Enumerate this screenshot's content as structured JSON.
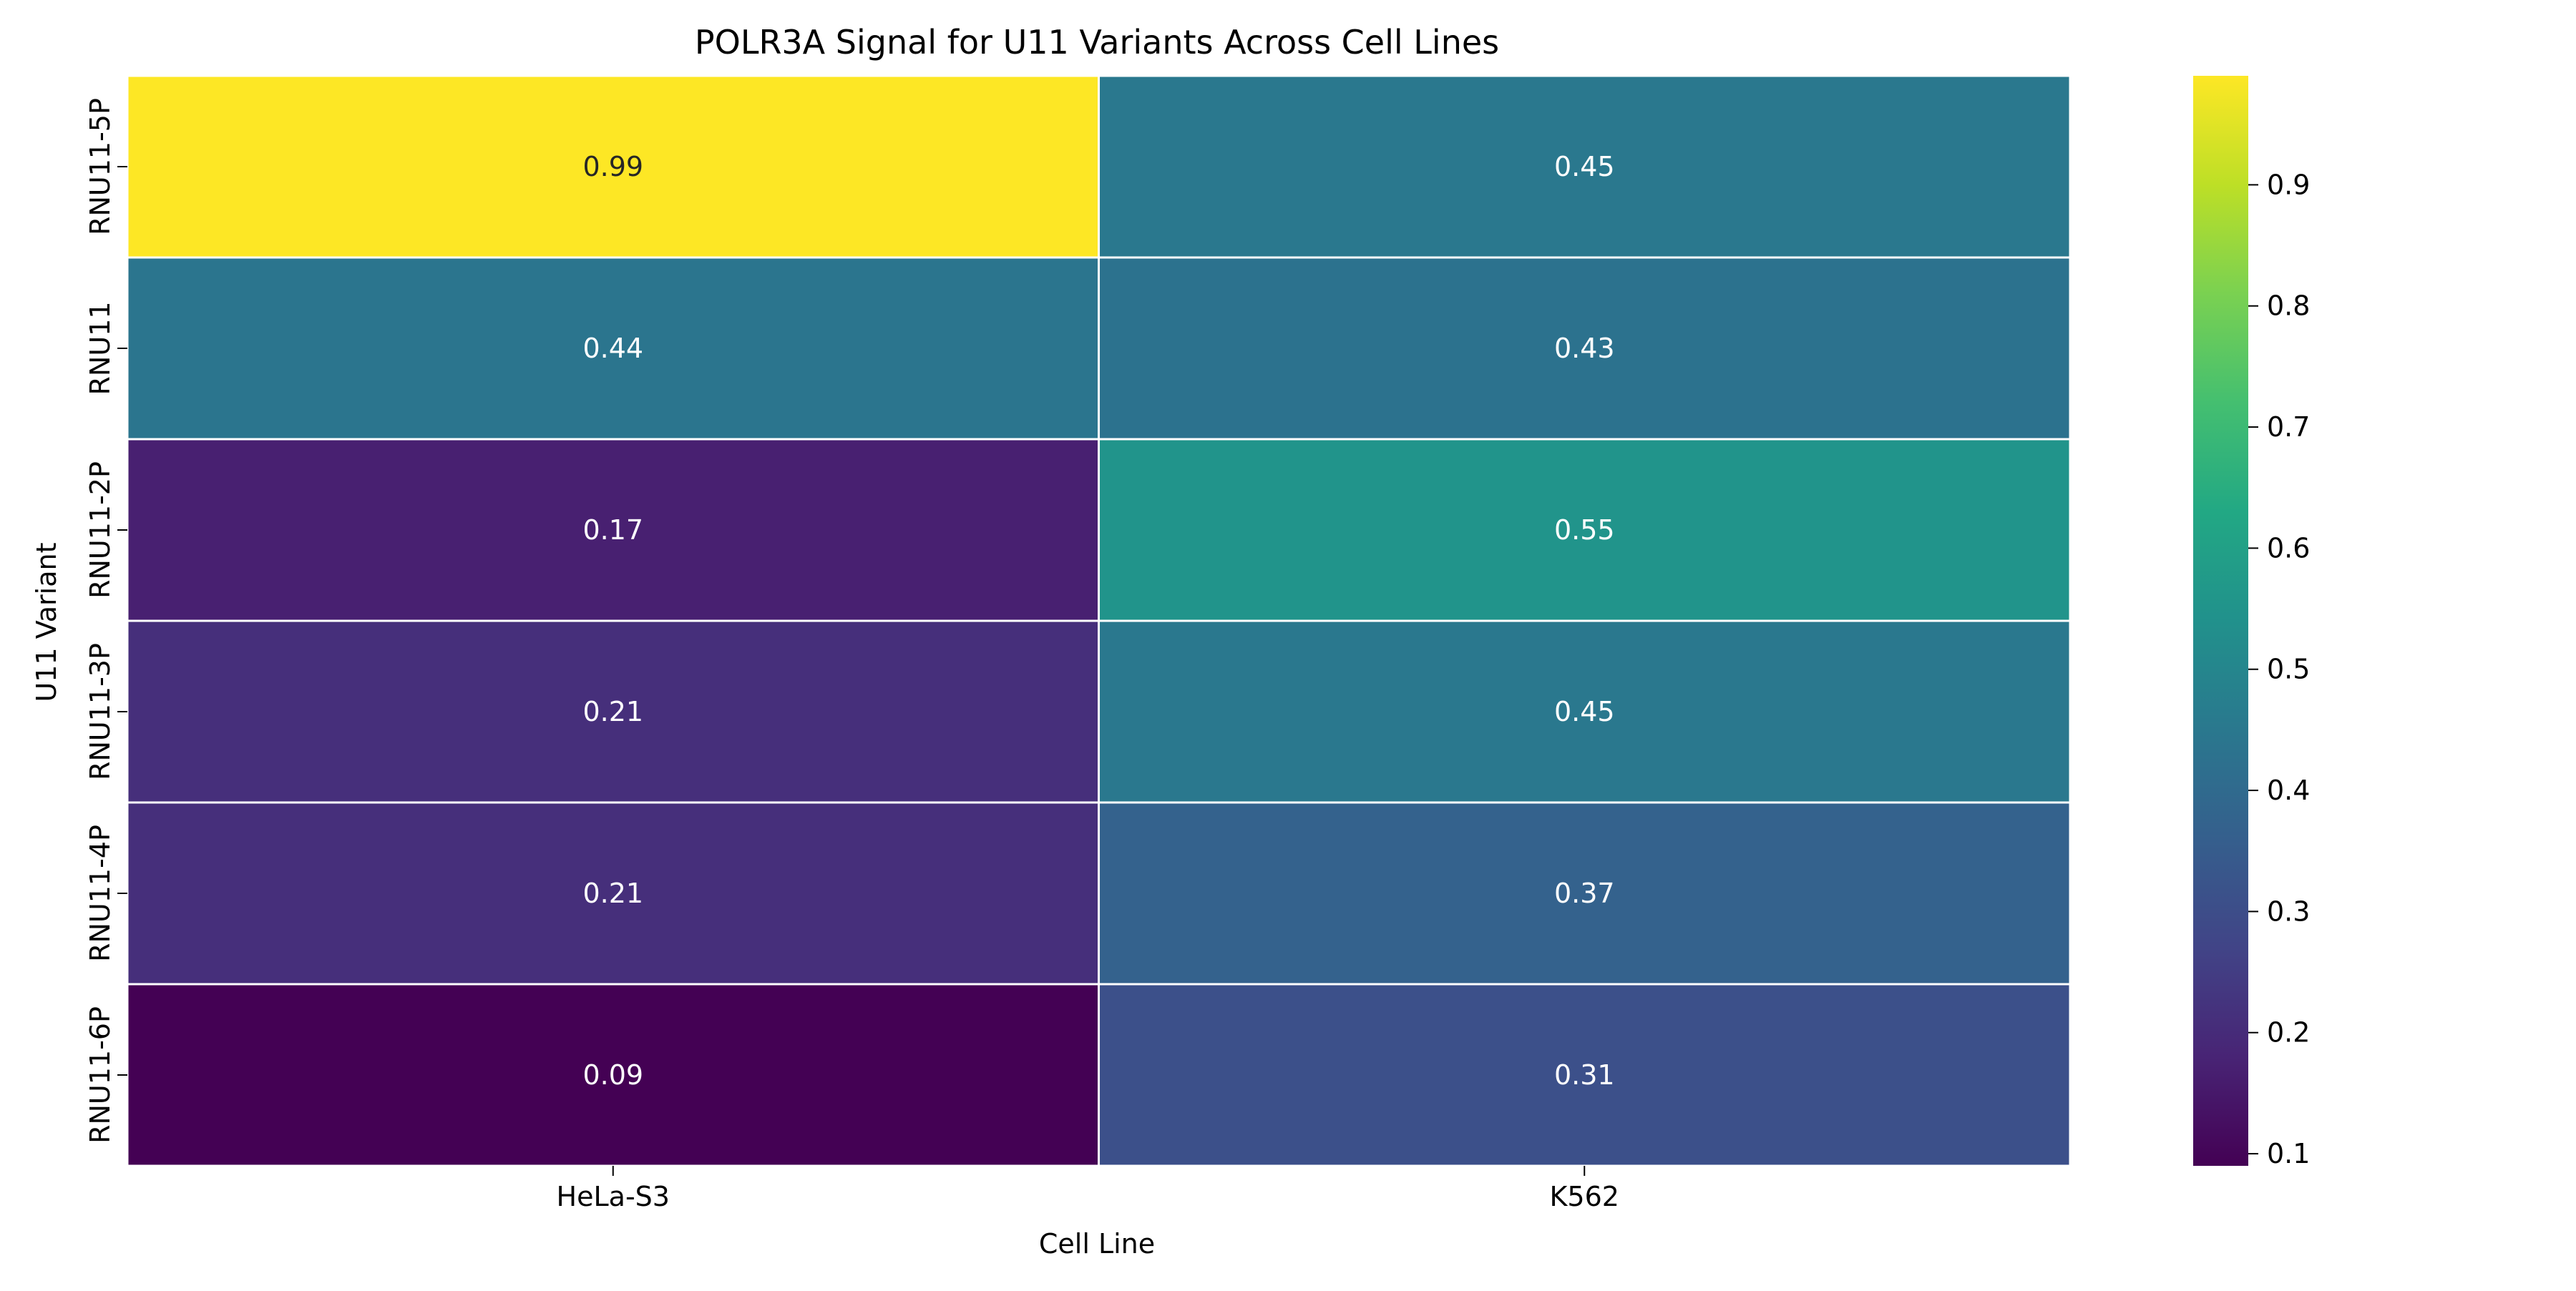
{
  "chart_data": {
    "type": "heatmap",
    "title": "POLR3A Signal for U11 Variants Across Cell Lines",
    "xlabel": "Cell Line",
    "ylabel": "U11 Variant",
    "x_categories": [
      "HeLa-S3",
      "K562"
    ],
    "y_categories": [
      "RNU11-5P",
      "RNU11",
      "RNU11-2P",
      "RNU11-3P",
      "RNU11-4P",
      "RNU11-6P"
    ],
    "values": [
      [
        0.99,
        0.45
      ],
      [
        0.44,
        0.43
      ],
      [
        0.17,
        0.55
      ],
      [
        0.21,
        0.45
      ],
      [
        0.21,
        0.37
      ],
      [
        0.09,
        0.31
      ]
    ],
    "colormap": "viridis",
    "colorbar": {
      "min": 0.09,
      "max": 0.99,
      "ticks": [
        0.1,
        0.2,
        0.3,
        0.4,
        0.5,
        0.6,
        0.7,
        0.8,
        0.9
      ],
      "tick_labels": [
        "0.1",
        "0.2",
        "0.3",
        "0.4",
        "0.5",
        "0.6",
        "0.7",
        "0.8",
        "0.9"
      ]
    },
    "annotations_shown": true,
    "cell_separator_color": "#ffffff"
  }
}
